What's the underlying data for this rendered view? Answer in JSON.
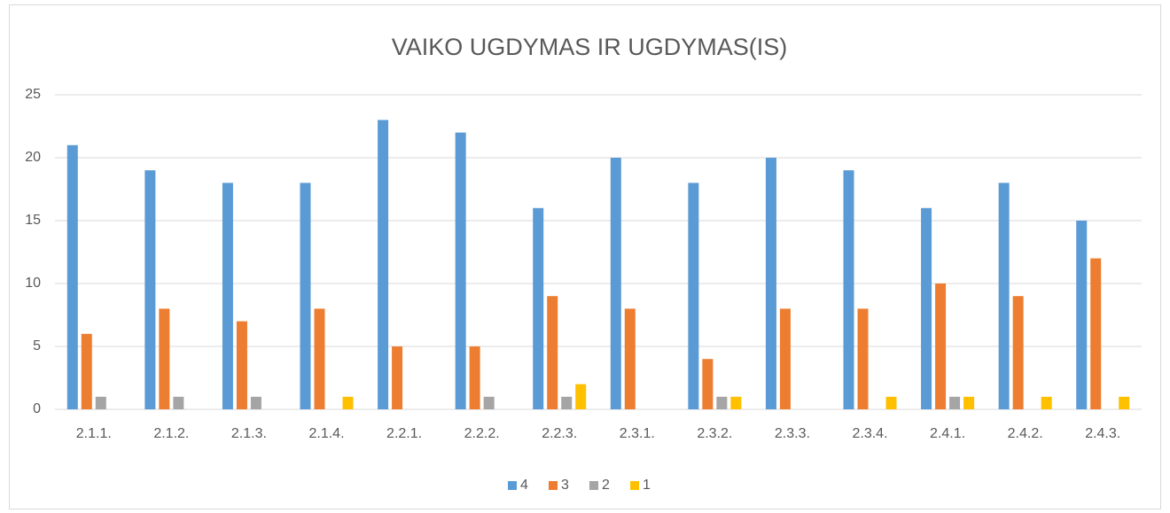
{
  "chart_data": {
    "type": "bar",
    "title": "VAIKO UGDYMAS IR UGDYMAS(IS)",
    "categories": [
      "2.1.1.",
      "2.1.2.",
      "2.1.3.",
      "2.1.4.",
      "2.2.1.",
      "2.2.2.",
      "2.2.3.",
      "2.3.1.",
      "2.3.2.",
      "2.3.3.",
      "2.3.4.",
      "2.4.1.",
      "2.4.2.",
      "2.4.3."
    ],
    "series": [
      {
        "name": "4",
        "color": "#5b9bd5",
        "values": [
          21,
          19,
          18,
          18,
          23,
          22,
          16,
          20,
          18,
          20,
          19,
          16,
          18,
          15
        ]
      },
      {
        "name": "3",
        "color": "#ed7d31",
        "values": [
          6,
          8,
          7,
          8,
          5,
          5,
          9,
          8,
          4,
          8,
          8,
          10,
          9,
          12
        ]
      },
      {
        "name": "2",
        "color": "#a5a5a5",
        "values": [
          1,
          1,
          1,
          0,
          0,
          1,
          1,
          0,
          1,
          0,
          0,
          1,
          0,
          0
        ]
      },
      {
        "name": "1",
        "color": "#ffc000",
        "values": [
          0,
          0,
          0,
          1,
          0,
          0,
          2,
          0,
          1,
          0,
          1,
          1,
          1,
          1
        ]
      }
    ],
    "ylim": [
      0,
      25
    ],
    "yticks": [
      0,
      5,
      10,
      15,
      20,
      25
    ],
    "grid": true,
    "legend": "bottom"
  }
}
